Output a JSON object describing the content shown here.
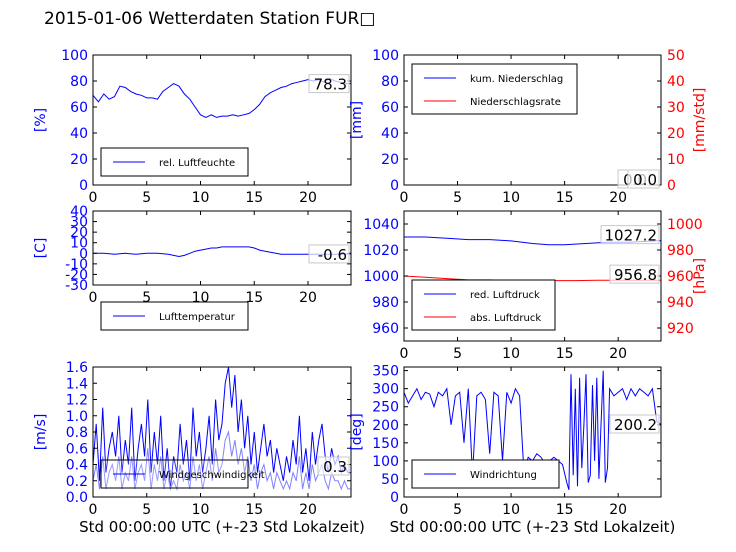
{
  "title": "2015-01-06 Wetterdaten Station FUR□",
  "colors": {
    "blue": "#0000ff",
    "red": "#ff0000",
    "black": "#000000",
    "lightblue": "#8080ff"
  },
  "chart_data": [
    {
      "id": "humidity",
      "type": "line",
      "xlim": [
        0,
        24
      ],
      "ylim": [
        0,
        100
      ],
      "xticks": [
        0,
        5,
        10,
        15,
        20
      ],
      "yticks": [
        0,
        20,
        40,
        60,
        80,
        100
      ],
      "ylabel": "[%]",
      "ylabel_color": "#0000ff",
      "ytick_color": "#0000ff",
      "series": [
        {
          "name": "rel. Luftfeuchte",
          "color": "#0000ff",
          "x": [
            0,
            0.5,
            1,
            1.5,
            2,
            2.5,
            3,
            3.5,
            4,
            4.5,
            5,
            5.5,
            6,
            6.5,
            7,
            7.5,
            8,
            8.5,
            9,
            9.5,
            10,
            10.5,
            11,
            11.5,
            12,
            12.5,
            13,
            13.5,
            14,
            14.5,
            15,
            15.5,
            16,
            16.5,
            17,
            17.5,
            18,
            18.5,
            19,
            19.5,
            20,
            20.5,
            21,
            21.5,
            22,
            22.5,
            23,
            23.5,
            24
          ],
          "y": [
            69,
            64,
            70,
            66,
            68,
            76,
            75,
            72,
            70,
            69,
            67,
            67,
            66,
            72,
            75,
            78,
            76,
            70,
            66,
            60,
            54,
            52,
            54,
            52,
            53,
            53,
            54,
            53,
            54,
            55,
            58,
            62,
            68,
            71,
            73,
            75,
            76,
            78,
            79,
            80,
            81,
            80,
            81,
            79,
            82,
            80,
            79,
            78,
            78
          ]
        }
      ],
      "legend": {
        "entries": [
          "rel. Luftfeuchte"
        ],
        "placement": "lower-left"
      },
      "end_label": "78.3"
    },
    {
      "id": "precipitation",
      "type": "line",
      "xlim": [
        0,
        24
      ],
      "ylim": [
        0,
        100
      ],
      "xticks": [
        0,
        5,
        10,
        15,
        20
      ],
      "yticks": [
        0,
        20,
        40,
        60,
        80,
        100
      ],
      "ylabel": "[mm]",
      "ylabel_color": "#0000ff",
      "ytick_color": "#0000ff",
      "ylim2": [
        0,
        50
      ],
      "yticks2": [
        0,
        10,
        20,
        30,
        40,
        50
      ],
      "ylabel2": "[mm/std]",
      "ylabel2_color": "#ff0000",
      "ytick2_color": "#ff0000",
      "series": [
        {
          "name": "kum. Niederschlag",
          "color": "#0000ff",
          "axis": "left",
          "x": [
            0,
            24
          ],
          "y": [
            0,
            0
          ]
        },
        {
          "name": "Niederschlagsrate",
          "color": "#ff0000",
          "axis": "right",
          "x": [
            0,
            24
          ],
          "y": [
            0,
            0
          ]
        }
      ],
      "legend": {
        "entries": [
          "kum. Niederschlag",
          "Niederschlagsrate"
        ],
        "placement": "upper-left"
      },
      "end_labels": [
        "0.0",
        "0.0"
      ]
    },
    {
      "id": "temperature",
      "type": "line",
      "xlim": [
        0,
        24
      ],
      "ylim": [
        -30,
        40
      ],
      "xticks": [
        0,
        5,
        10,
        15,
        20
      ],
      "yticks": [
        -30,
        -20,
        -10,
        0,
        10,
        20,
        30,
        40
      ],
      "ylabel": "[C]",
      "ylabel_color": "#0000ff",
      "ytick_color": "#0000ff",
      "series": [
        {
          "name": "Lufttemperatur",
          "color": "#0000ff",
          "x": [
            0,
            1,
            2,
            3,
            4,
            5,
            6,
            7,
            7.5,
            8,
            8.5,
            9,
            9.5,
            10,
            10.5,
            11,
            11.5,
            12,
            12.5,
            13,
            13.5,
            14,
            14.5,
            15,
            15.5,
            16,
            16.5,
            17,
            17.5,
            18,
            18.5,
            19,
            19.5,
            20,
            21,
            22,
            23,
            24
          ],
          "y": [
            0,
            0,
            -1,
            0,
            -1,
            0,
            0,
            -1,
            -2,
            -3,
            -2,
            0,
            2,
            3,
            4,
            5,
            5,
            6,
            6,
            6,
            6,
            6,
            6,
            5,
            3,
            2,
            1,
            0,
            -1,
            -1,
            -1,
            -1,
            -1,
            -1,
            -1,
            -1,
            -1,
            -0.6
          ]
        }
      ],
      "legend": {
        "entries": [
          "Lufttemperatur"
        ],
        "placement": "lower-left"
      },
      "end_label": "-0.6"
    },
    {
      "id": "pressure",
      "type": "line",
      "xlim": [
        0,
        24
      ],
      "ylim": [
        950,
        1050
      ],
      "xticks": [
        0,
        5,
        10,
        15,
        20
      ],
      "yticks": [
        960,
        980,
        1000,
        1020,
        1040
      ],
      "ylabel": "",
      "ytick_color": "#0000ff",
      "ylim2": [
        910,
        1010
      ],
      "yticks2": [
        920,
        940,
        960,
        980,
        1000
      ],
      "ylabel2": "[hPa]",
      "ylabel2_color": "#ff0000",
      "ytick2_color": "#ff0000",
      "series": [
        {
          "name": "red. Luftdruck",
          "color": "#0000ff",
          "axis": "left",
          "x": [
            0,
            2,
            4,
            6,
            8,
            10,
            12,
            13.5,
            15,
            17,
            19,
            21,
            24
          ],
          "y": [
            1030,
            1030,
            1029,
            1028,
            1028,
            1027,
            1025,
            1024,
            1024,
            1025,
            1026,
            1026,
            1027.2
          ]
        },
        {
          "name": "abs. Luftdruck",
          "color": "#ff0000",
          "axis": "right",
          "x": [
            0,
            2,
            4,
            6,
            8,
            10,
            12,
            14,
            16,
            18,
            20,
            22,
            24
          ],
          "y": [
            960,
            959,
            958,
            957,
            957,
            956.5,
            956.5,
            956.5,
            956.5,
            956.8,
            956.8,
            956.8,
            956.8
          ]
        }
      ],
      "legend": {
        "entries": [
          "red. Luftdruck",
          "abs. Luftdruck"
        ],
        "placement": "lower-left"
      },
      "end_labels": [
        "1027.2",
        "956.8"
      ]
    },
    {
      "id": "windspeed",
      "type": "line",
      "xlim": [
        0,
        24
      ],
      "ylim": [
        0,
        1.6
      ],
      "xticks": [
        0,
        5,
        10,
        15,
        20
      ],
      "yticks": [
        0.0,
        0.2,
        0.4,
        0.6,
        0.8,
        1.0,
        1.2,
        1.4,
        1.6
      ],
      "ytick_decimals": 1,
      "ylabel": "[m/s]",
      "ylabel_color": "#0000ff",
      "ytick_color": "#0000ff",
      "xlabel": "Std 00:00:00 UTC (+-23 Std Lokalzeit)",
      "series": [
        {
          "name": "Windgeschwindigkeit",
          "color": "#0000ff",
          "x": [
            0,
            0.3,
            0.6,
            0.9,
            1.2,
            1.5,
            1.8,
            2.1,
            2.4,
            2.7,
            3,
            3.3,
            3.6,
            3.9,
            4.2,
            4.5,
            4.8,
            5.1,
            5.4,
            5.7,
            6,
            6.3,
            6.6,
            6.9,
            7.2,
            7.5,
            7.8,
            8.1,
            8.4,
            8.7,
            9,
            9.3,
            9.6,
            9.9,
            10.2,
            10.5,
            10.8,
            11.1,
            11.4,
            11.7,
            12,
            12.3,
            12.6,
            12.9,
            13.2,
            13.5,
            13.8,
            14.1,
            14.4,
            14.7,
            15,
            15.3,
            15.6,
            15.9,
            16.2,
            16.5,
            16.8,
            17.1,
            17.4,
            17.7,
            18,
            18.3,
            18.6,
            18.9,
            19.2,
            19.5,
            19.8,
            20.1,
            20.4,
            20.7,
            21,
            21.3,
            21.6,
            21.9,
            22.2,
            22.5,
            22.8,
            23.1,
            23.4,
            23.7,
            24
          ],
          "y": [
            0.4,
            0.9,
            0.2,
            1.1,
            0.3,
            0.6,
            0.8,
            0.5,
            1.0,
            0.3,
            0.7,
            0.4,
            1.1,
            0.2,
            0.6,
            0.9,
            0.5,
            1.2,
            0.3,
            0.8,
            0.4,
            1.0,
            0.2,
            0.6,
            0.1,
            0.5,
            0.3,
            0.9,
            0.4,
            0.7,
            0.2,
            1.1,
            0.5,
            0.8,
            0.3,
            0.6,
            1.0,
            0.4,
            1.2,
            0.7,
            0.9,
            1.4,
            1.6,
            1.1,
            1.5,
            0.8,
            1.2,
            0.6,
            1.0,
            0.4,
            0.8,
            0.3,
            0.6,
            0.9,
            0.5,
            0.7,
            0.3,
            0.6,
            0.4,
            0.2,
            0.5,
            0.3,
            0.7,
            0.4,
            1.0,
            0.3,
            0.6,
            0.2,
            0.8,
            0.4,
            0.7,
            0.9,
            0.5,
            0.3,
            0.6,
            0.4,
            0.5,
            0.3,
            0.4,
            0.3,
            0.3
          ]
        },
        {
          "name": "",
          "color": "#8080ff",
          "x": [
            0,
            0.3,
            0.6,
            0.9,
            1.2,
            1.5,
            1.8,
            2.1,
            2.4,
            2.7,
            3,
            3.3,
            3.6,
            3.9,
            4.2,
            4.5,
            4.8,
            5.1,
            5.4,
            5.7,
            6,
            6.3,
            6.6,
            6.9,
            7.2,
            7.5,
            7.8,
            8.1,
            8.4,
            8.7,
            9,
            9.3,
            9.6,
            9.9,
            10.2,
            10.5,
            10.8,
            11.1,
            11.4,
            11.7,
            12,
            12.3,
            12.6,
            12.9,
            13.2,
            13.5,
            13.8,
            14.1,
            14.4,
            14.7,
            15,
            15.3,
            15.6,
            15.9,
            16.2,
            16.5,
            16.8,
            17.1,
            17.4,
            17.7,
            18,
            18.3,
            18.6,
            18.9,
            19.2,
            19.5,
            19.8,
            20.1,
            20.4,
            20.7,
            21,
            21.3,
            21.6,
            21.9,
            22.2,
            22.5,
            22.8,
            23.1,
            23.4,
            23.7,
            24
          ],
          "y": [
            0.2,
            0.4,
            0.1,
            0.5,
            0.1,
            0.3,
            0.4,
            0.2,
            0.5,
            0.1,
            0.3,
            0.2,
            0.5,
            0.1,
            0.3,
            0.4,
            0.2,
            0.6,
            0.1,
            0.4,
            0.2,
            0.5,
            0.1,
            0.3,
            0.1,
            0.2,
            0.1,
            0.4,
            0.2,
            0.3,
            0.1,
            0.5,
            0.2,
            0.4,
            0.1,
            0.3,
            0.5,
            0.2,
            0.6,
            0.3,
            0.4,
            0.7,
            0.8,
            0.5,
            0.7,
            0.4,
            0.6,
            0.3,
            0.5,
            0.2,
            0.4,
            0.1,
            0.3,
            0.4,
            0.2,
            0.3,
            0.1,
            0.3,
            0.2,
            0.1,
            0.2,
            0.1,
            0.3,
            0.2,
            0.5,
            0.1,
            0.3,
            0.1,
            0.4,
            0.2,
            0.3,
            0.4,
            0.2,
            0.1,
            0.3,
            0.2,
            0.2,
            0.1,
            0.2,
            0.1,
            0.1
          ]
        }
      ],
      "legend": {
        "entries": [
          "Windgeschwindigkeit"
        ],
        "placement": "lower-left"
      },
      "end_label": "0.3"
    },
    {
      "id": "winddirection",
      "type": "line",
      "xlim": [
        0,
        24
      ],
      "ylim": [
        0,
        360
      ],
      "xticks": [
        0,
        5,
        10,
        15,
        20
      ],
      "yticks": [
        0,
        50,
        100,
        150,
        200,
        250,
        300,
        350
      ],
      "ylabel": "[deg]",
      "ylabel_color": "#0000ff",
      "ytick_color": "#0000ff",
      "xlabel": "Std 00:00:00 UTC (+-23 Std Lokalzeit)",
      "series": [
        {
          "name": "Windrichtung",
          "color": "#0000ff",
          "x": [
            0,
            0.4,
            0.8,
            1.2,
            1.6,
            2,
            2.4,
            2.8,
            3.2,
            3.6,
            4,
            4.4,
            4.8,
            5.2,
            5.6,
            6,
            6.4,
            6.8,
            7.2,
            7.6,
            8,
            8.4,
            8.8,
            9.2,
            9.6,
            10,
            10.4,
            10.8,
            11.2,
            11.6,
            12,
            12.4,
            12.8,
            13.2,
            13.6,
            14,
            14.4,
            14.8,
            15.2,
            15.4,
            15.6,
            15.8,
            16,
            16.2,
            16.4,
            16.6,
            16.8,
            17,
            17.2,
            17.4,
            17.6,
            17.8,
            18,
            18.2,
            18.4,
            18.6,
            18.8,
            19,
            19.2,
            19.6,
            20,
            20.4,
            20.8,
            21.2,
            21.6,
            22,
            22.4,
            22.8,
            23.2,
            23.6,
            24
          ],
          "y": [
            290,
            260,
            280,
            300,
            270,
            290,
            285,
            250,
            290,
            280,
            300,
            200,
            280,
            290,
            150,
            300,
            60,
            280,
            290,
            270,
            120,
            290,
            280,
            100,
            290,
            260,
            300,
            280,
            70,
            110,
            100,
            120,
            110,
            90,
            100,
            110,
            100,
            90,
            40,
            20,
            340,
            60,
            300,
            30,
            330,
            80,
            200,
            340,
            40,
            60,
            310,
            100,
            330,
            50,
            200,
            350,
            40,
            80,
            300,
            280,
            290,
            300,
            270,
            300,
            280,
            300,
            290,
            280,
            300,
            210,
            200.2
          ]
        }
      ],
      "legend": {
        "entries": [
          "Windrichtung"
        ],
        "placement": "lower-left"
      },
      "end_label": "200.2"
    }
  ]
}
